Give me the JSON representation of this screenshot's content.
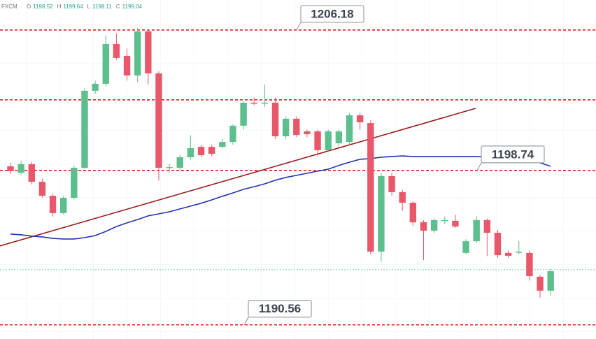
{
  "chart_data": {
    "type": "candlestick",
    "header": {
      "source": "FXCM",
      "items": [
        {
          "label": "O",
          "value": 1198.52
        },
        {
          "label": "H",
          "value": 1199.64
        },
        {
          "label": "L",
          "value": 1198.11
        },
        {
          "label": "C",
          "value": 1199.04
        }
      ]
    },
    "ohlc": [
      [
        1198.96,
        1199.15,
        1198.55,
        1198.7
      ],
      [
        1198.62,
        1199.25,
        1198.5,
        1199.07
      ],
      [
        1199.07,
        1199.2,
        1198.0,
        1198.14
      ],
      [
        1198.14,
        1198.3,
        1197.3,
        1197.4
      ],
      [
        1197.4,
        1197.5,
        1196.29,
        1196.48
      ],
      [
        1196.48,
        1197.4,
        1196.4,
        1197.29
      ],
      [
        1197.29,
        1199.0,
        1197.2,
        1198.88
      ],
      [
        1198.88,
        1203.1,
        1198.8,
        1202.96
      ],
      [
        1202.96,
        1203.5,
        1202.8,
        1203.33
      ],
      [
        1203.33,
        1205.9,
        1203.2,
        1205.44
      ],
      [
        1205.44,
        1206.0,
        1204.6,
        1204.7
      ],
      [
        1204.81,
        1205.2,
        1203.5,
        1203.77
      ],
      [
        1203.77,
        1206.3,
        1203.4,
        1206.11
      ],
      [
        1206.11,
        1206.2,
        1203.3,
        1203.88
      ],
      [
        1203.88,
        1204.0,
        1198.2,
        1198.88
      ],
      [
        1198.88,
        1199.1,
        1198.6,
        1198.92
      ],
      [
        1198.88,
        1199.6,
        1198.7,
        1199.44
      ],
      [
        1199.44,
        1200.6,
        1199.3,
        1199.92
      ],
      [
        1199.99,
        1200.1,
        1199.45,
        1199.55
      ],
      [
        1199.99,
        1200.1,
        1199.5,
        1199.62
      ],
      [
        1199.99,
        1200.4,
        1199.9,
        1200.25
      ],
      [
        1200.25,
        1201.2,
        1200.1,
        1201.11
      ],
      [
        1201.11,
        1202.4,
        1200.9,
        1202.33
      ],
      [
        1202.33,
        1202.6,
        1202.2,
        1202.29
      ],
      [
        1202.29,
        1203.3,
        1202.1,
        1202.33
      ],
      [
        1202.33,
        1202.6,
        1200.4,
        1200.55
      ],
      [
        1200.55,
        1201.6,
        1200.4,
        1201.48
      ],
      [
        1201.48,
        1201.6,
        1200.5,
        1200.62
      ],
      [
        1200.81,
        1200.9,
        1200.5,
        1200.66
      ],
      [
        1200.81,
        1200.9,
        1199.5,
        1199.81
      ],
      [
        1199.81,
        1200.9,
        1199.7,
        1200.81
      ],
      [
        1200.18,
        1200.9,
        1200.0,
        1200.81
      ],
      [
        1200.25,
        1201.8,
        1200.1,
        1201.66
      ],
      [
        1201.66,
        1201.8,
        1200.9,
        1201.29
      ],
      [
        1201.25,
        1201.4,
        1194.3,
        1194.44
      ],
      [
        1194.44,
        1198.6,
        1193.9,
        1198.44
      ],
      [
        1198.44,
        1198.6,
        1197.4,
        1197.59
      ],
      [
        1197.59,
        1197.7,
        1196.6,
        1197.03
      ],
      [
        1197.03,
        1197.1,
        1195.8,
        1195.99
      ],
      [
        1196.0,
        1196.1,
        1194.0,
        1195.55
      ],
      [
        1195.55,
        1196.2,
        1195.4,
        1196.11
      ],
      [
        1196.07,
        1196.3,
        1195.9,
        1196.11
      ],
      [
        1196.07,
        1196.4,
        1195.7,
        1195.77
      ],
      [
        1194.37,
        1195.1,
        1194.3,
        1194.99
      ],
      [
        1194.99,
        1196.3,
        1194.9,
        1196.11
      ],
      [
        1196.11,
        1196.2,
        1194.2,
        1195.44
      ],
      [
        1195.44,
        1195.6,
        1194.1,
        1194.25
      ],
      [
        1194.37,
        1194.5,
        1194.1,
        1194.22
      ],
      [
        1194.4,
        1195.0,
        1194.3,
        1194.44
      ],
      [
        1194.37,
        1194.5,
        1192.9,
        1193.14
      ],
      [
        1193.11,
        1193.2,
        1192.0,
        1192.37
      ],
      [
        1192.37,
        1193.5,
        1192.1,
        1193.4
      ]
    ],
    "up_color": "#5cbf8d",
    "down_color": "#e8576a",
    "moving_average": [
      1195.37,
      1195.33,
      1195.26,
      1195.22,
      1195.14,
      1195.11,
      1195.11,
      1195.18,
      1195.29,
      1195.51,
      1195.77,
      1195.96,
      1196.14,
      1196.33,
      1196.44,
      1196.55,
      1196.7,
      1196.85,
      1197.0,
      1197.18,
      1197.37,
      1197.55,
      1197.74,
      1197.88,
      1198.03,
      1198.22,
      1198.37,
      1198.48,
      1198.59,
      1198.7,
      1198.81,
      1199.0,
      1199.18,
      1199.33,
      1199.37,
      1199.44,
      1199.48,
      1199.51,
      1199.48,
      1199.48,
      1199.48,
      1199.48,
      1199.48,
      1199.48,
      1199.48,
      1199.44,
      1199.4,
      1199.4,
      1199.37,
      1199.29,
      1199.14,
      1198.96
    ],
    "ma_color": "#2233b0",
    "trendline": [
      [
        -0.99,
        1194.74
      ],
      [
        43.92,
        1202.03
      ]
    ],
    "trend_color": "#9b1b1b",
    "levels": [
      1206.18,
      1198.74,
      1190.56
    ],
    "unlabeled_levels": [
      1202.48
    ],
    "level_color": "#dd2222",
    "last_price": 1193.48,
    "last_price_color": "#7ccaa3",
    "xlim": [
      -0.99,
      55.28
    ],
    "ylim": [
      1189.81,
      1207.77
    ]
  }
}
